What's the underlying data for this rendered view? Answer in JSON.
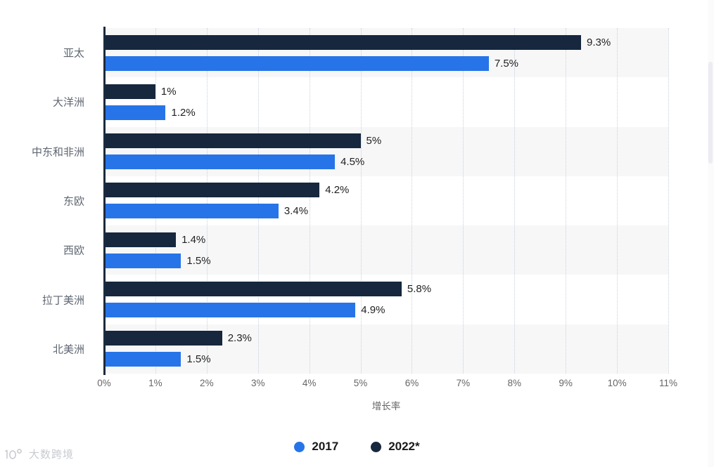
{
  "chart_data": {
    "type": "bar",
    "orientation": "horizontal",
    "title": "",
    "categories": [
      "亚太",
      "大洋洲",
      "中东和非洲",
      "东欧",
      "西欧",
      "拉丁美洲",
      "北美洲"
    ],
    "series": [
      {
        "name": "2022*",
        "color": "#16273e",
        "values": [
          9.3,
          1,
          5,
          4.2,
          1.4,
          5.8,
          2.3
        ],
        "labels": [
          "9.3%",
          "1%",
          "5%",
          "4.2%",
          "1.4%",
          "5.8%",
          "2.3%"
        ]
      },
      {
        "name": "2017",
        "color": "#2774e8",
        "values": [
          7.5,
          1.2,
          4.5,
          3.4,
          1.5,
          4.9,
          1.5
        ],
        "labels": [
          "7.5%",
          "1.2%",
          "4.5%",
          "3.4%",
          "1.5%",
          "4.9%",
          "1.5%"
        ]
      }
    ],
    "legend": [
      {
        "name": "2017",
        "color": "#2774e8"
      },
      {
        "name": "2022*",
        "color": "#16273e"
      }
    ],
    "legend_position": "bottom-center",
    "xlabel": "增长率",
    "xlim": [
      0,
      11
    ],
    "x_ticks": [
      "0%",
      "1%",
      "2%",
      "3%",
      "4%",
      "5%",
      "6%",
      "7%",
      "8%",
      "9%",
      "10%",
      "11%"
    ],
    "grid": "dotted-vertical",
    "band_color": "#f7f7f7",
    "axis_line_color": "#1c2b3d"
  },
  "watermark": {
    "text": "大数跨境"
  }
}
